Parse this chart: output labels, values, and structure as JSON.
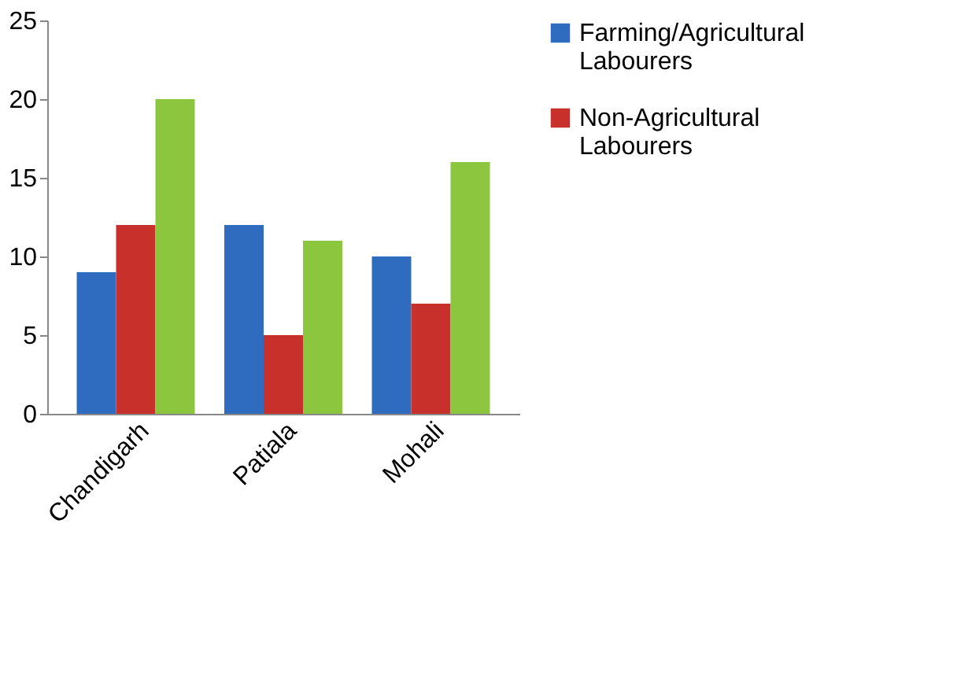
{
  "chart_data": {
    "type": "bar",
    "categories": [
      "Chandigarh",
      "Patiala",
      "Mohali"
    ],
    "series": [
      {
        "name": "Farming/Agricultural Labourers",
        "color": "#2f6cc0",
        "values": [
          9,
          12,
          10
        ]
      },
      {
        "name": "Non-Agricultural Labourers",
        "color": "#c8302c",
        "values": [
          12,
          5,
          7
        ]
      },
      {
        "color": "#8cc63f",
        "values": [
          20,
          11,
          16
        ]
      }
    ],
    "ylim": [
      0,
      25
    ],
    "yticks": [
      0,
      5,
      10,
      15,
      20,
      25
    ],
    "grid": false,
    "legend": "right"
  }
}
